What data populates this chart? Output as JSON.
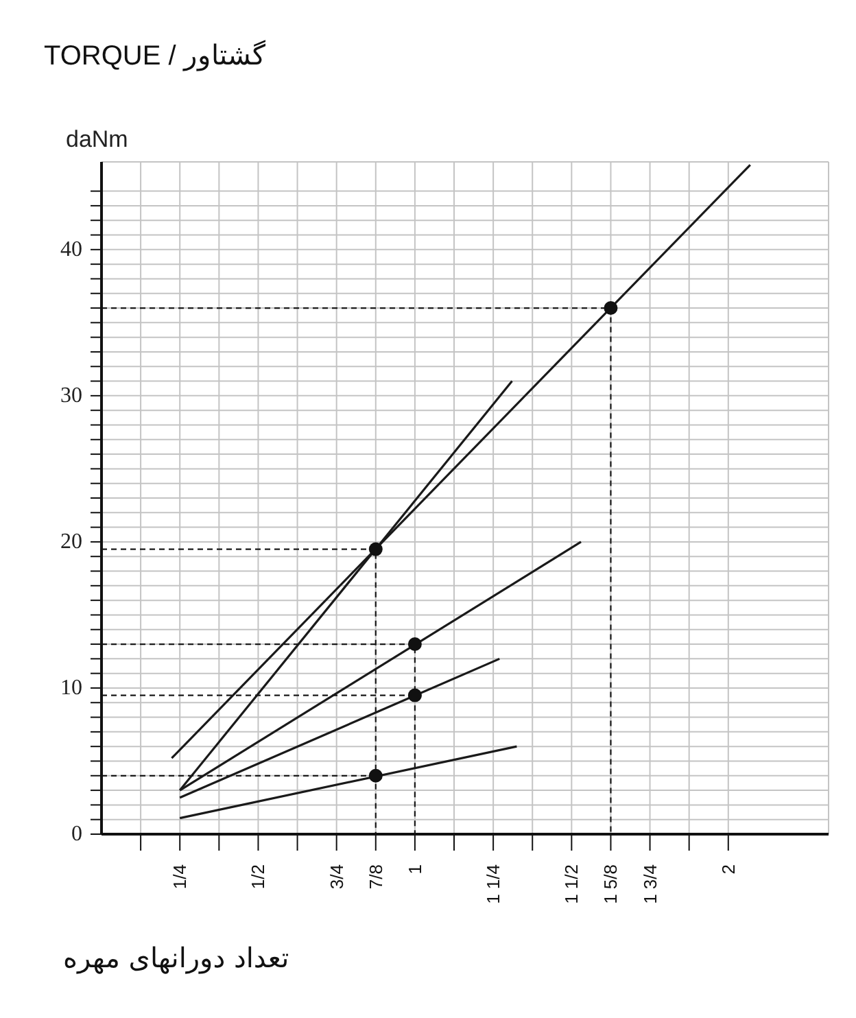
{
  "chart_data": {
    "type": "line",
    "title": "TORQUE / گشتاور",
    "ylabel": "daNm",
    "xlabel": "تعداد دورانهای مهره",
    "grid": true,
    "xlim": [
      0,
      2.32
    ],
    "ylim": [
      0,
      46
    ],
    "xticks": [
      {
        "value": 0.125,
        "label": null
      },
      {
        "value": 0.25,
        "label": "1/4"
      },
      {
        "value": 0.375,
        "label": null
      },
      {
        "value": 0.5,
        "label": "1/2"
      },
      {
        "value": 0.625,
        "label": null
      },
      {
        "value": 0.75,
        "label": "3/4"
      },
      {
        "value": 0.875,
        "label": "7/8"
      },
      {
        "value": 1,
        "label": "1"
      },
      {
        "value": 1.125,
        "label": null
      },
      {
        "value": 1.25,
        "label": "1 1/4"
      },
      {
        "value": 1.375,
        "label": null
      },
      {
        "value": 1.5,
        "label": "1 1/2"
      },
      {
        "value": 1.625,
        "label": "1 5/8"
      },
      {
        "value": 1.75,
        "label": "1 3/4"
      },
      {
        "value": 1.875,
        "label": null
      },
      {
        "value": 2,
        "label": "2"
      }
    ],
    "yticks": [
      0,
      {
        "value": 1,
        "label": null
      },
      {
        "value": 2,
        "label": null
      },
      {
        "value": 3,
        "label": null
      },
      {
        "value": 4,
        "label": null
      },
      {
        "value": 5,
        "label": null
      },
      {
        "value": 6,
        "label": null
      },
      {
        "value": 7,
        "label": null
      },
      {
        "value": 8,
        "label": null
      },
      {
        "value": 9,
        "label": null
      },
      10,
      {
        "value": 11,
        "label": null
      },
      {
        "value": 12,
        "label": null
      },
      {
        "value": 13,
        "label": null
      },
      {
        "value": 14,
        "label": null
      },
      {
        "value": 15,
        "label": null
      },
      {
        "value": 16,
        "label": null
      },
      {
        "value": 17,
        "label": null
      },
      {
        "value": 18,
        "label": null
      },
      {
        "value": 19,
        "label": null
      },
      20,
      {
        "value": 21,
        "label": null
      },
      {
        "value": 22,
        "label": null
      },
      {
        "value": 23,
        "label": null
      },
      {
        "value": 24,
        "label": null
      },
      {
        "value": 25,
        "label": null
      },
      {
        "value": 26,
        "label": null
      },
      {
        "value": 27,
        "label": null
      },
      {
        "value": 28,
        "label": null
      },
      {
        "value": 29,
        "label": null
      },
      30,
      {
        "value": 31,
        "label": null
      },
      {
        "value": 32,
        "label": null
      },
      {
        "value": 33,
        "label": null
      },
      {
        "value": 34,
        "label": null
      },
      {
        "value": 35,
        "label": null
      },
      {
        "value": 36,
        "label": null
      },
      {
        "value": 37,
        "label": null
      },
      {
        "value": 38,
        "label": null
      },
      {
        "value": 39,
        "label": null
      },
      40,
      {
        "value": 41,
        "label": null
      },
      {
        "value": 42,
        "label": null
      },
      {
        "value": 43,
        "label": null
      },
      {
        "value": 44,
        "label": null
      }
    ],
    "series": [
      {
        "color": "#1a1a1a",
        "marker": "none",
        "line_style": "solid",
        "x": [
          0.224,
          2.07
        ],
        "values": [
          5.2,
          45.8
        ]
      },
      {
        "color": "#1a1a1a",
        "marker": "none",
        "line_style": "solid",
        "x": [
          0.25,
          1.31
        ],
        "values": [
          3,
          31
        ]
      },
      {
        "color": "#1a1a1a",
        "marker": "none",
        "line_style": "solid",
        "x": [
          0.25,
          1.53
        ],
        "values": [
          3,
          20
        ]
      },
      {
        "color": "#1a1a1a",
        "marker": "none",
        "line_style": "solid",
        "x": [
          0.25,
          1.27
        ],
        "values": [
          2.5,
          12
        ]
      },
      {
        "color": "#1a1a1a",
        "marker": "none",
        "line_style": "solid",
        "x": [
          0.25,
          1.325
        ],
        "values": [
          1.1,
          6
        ]
      },
      {
        "color": "#1a1a1a",
        "marker": "none",
        "line_style": "dashed",
        "x": [
          0,
          1.625,
          1.625
        ],
        "values": [
          36,
          36,
          0
        ]
      },
      {
        "color": "#1a1a1a",
        "marker": "none",
        "line_style": "dashed",
        "x": [
          0,
          0.875,
          0.875
        ],
        "values": [
          19.5,
          19.5,
          0
        ]
      },
      {
        "color": "#1a1a1a",
        "marker": "none",
        "line_style": "dashed",
        "x": [
          0,
          1,
          1
        ],
        "values": [
          13,
          13,
          0
        ]
      },
      {
        "color": "#1a1a1a",
        "marker": "none",
        "line_style": "dashed",
        "x": [
          0,
          1
        ],
        "values": [
          9.5,
          9.5
        ]
      },
      {
        "color": "#1a1a1a",
        "marker": "none",
        "line_style": "dashed",
        "x": [
          0,
          0.875
        ],
        "values": [
          4,
          4
        ]
      },
      {
        "type": "scatter",
        "color": "#111111",
        "marker": "circle",
        "x": [
          1.625,
          0.875,
          1,
          1,
          0.875
        ],
        "values": [
          36,
          19.5,
          13,
          9.5,
          4
        ]
      }
    ]
  }
}
